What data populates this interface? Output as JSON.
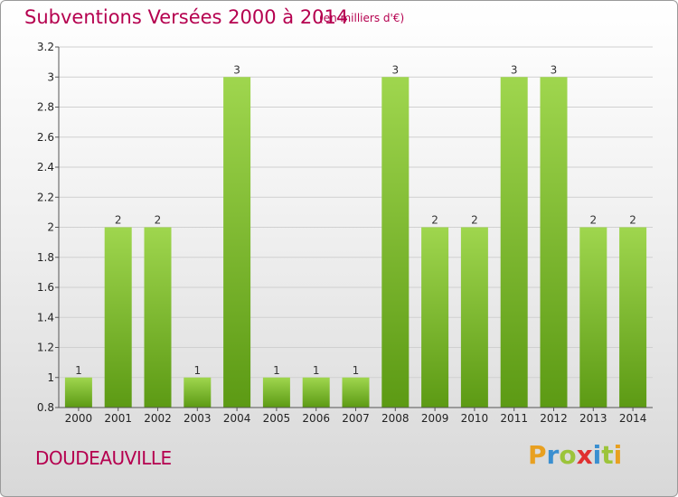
{
  "header": {
    "title": "Subventions Versées 2000 à 2014",
    "subtitle": "(en milliers d'€)"
  },
  "commune": "DOUDEAUVILLE",
  "logo": {
    "letters": [
      "P",
      "r",
      "o",
      "x",
      "i",
      "t",
      "i"
    ]
  },
  "colors": {
    "title": "#b5004f",
    "bar_top": "#9fd64e",
    "bar_bottom": "#5c9a14",
    "grid": "#d0d0d0",
    "logo": [
      "#e8a020",
      "#3a8fd0",
      "#9cc43a",
      "#e03030",
      "#3a8fd0",
      "#9cc43a",
      "#e8a020"
    ]
  },
  "chart_data": {
    "type": "bar",
    "title": "Subventions Versées 2000 à 2014",
    "subtitle": "(en milliers d'€)",
    "categories": [
      "2000",
      "2001",
      "2002",
      "2003",
      "2004",
      "2005",
      "2006",
      "2007",
      "2008",
      "2009",
      "2010",
      "2011",
      "2012",
      "2013",
      "2014"
    ],
    "values": [
      1,
      2,
      2,
      1,
      3,
      1,
      1,
      1,
      3,
      2,
      2,
      3,
      3,
      2,
      2
    ],
    "ylim": [
      0.8,
      3.2
    ],
    "yticks": [
      "0.8",
      "1",
      "1.2",
      "1.4",
      "1.6",
      "1.8",
      "2",
      "2.2",
      "2.4",
      "2.6",
      "2.8",
      "3",
      "3.2"
    ],
    "grid": true
  }
}
